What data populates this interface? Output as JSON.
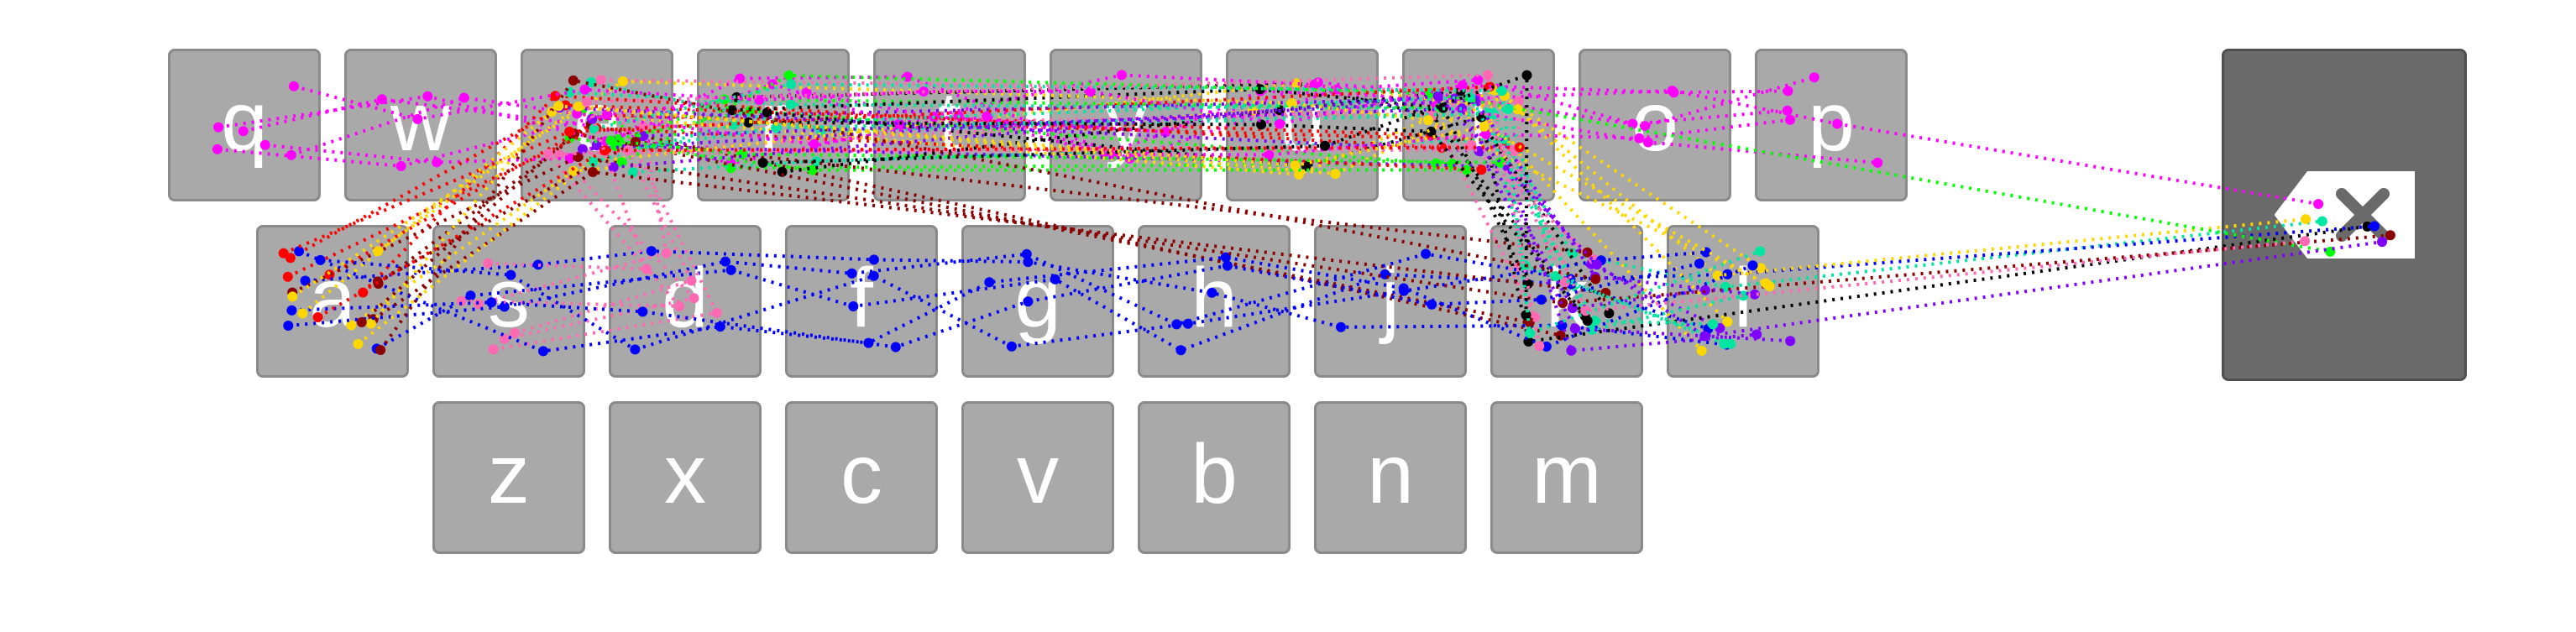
{
  "keyboard": {
    "rows": [
      [
        "q",
        "w",
        "e",
        "r",
        "t",
        "y",
        "u",
        "i",
        "o",
        "p"
      ],
      [
        "a",
        "s",
        "d",
        "f",
        "g",
        "h",
        "j",
        "k",
        "l"
      ],
      [
        "z",
        "x",
        "c",
        "v",
        "b",
        "n",
        "m"
      ]
    ],
    "backspace_icon": "backspace-icon"
  },
  "colors": {
    "key_fill": "#a9a9aa",
    "key_text": "#ffffff",
    "backspace_fill": "#6a6a6a",
    "trace_colors": [
      "#ff00ff",
      "#0000ff",
      "#00ff00",
      "#ff0000",
      "#000000",
      "#8b0000",
      "#7f00ff",
      "#00e5a0",
      "#ffd700",
      "#ff69b4"
    ]
  }
}
